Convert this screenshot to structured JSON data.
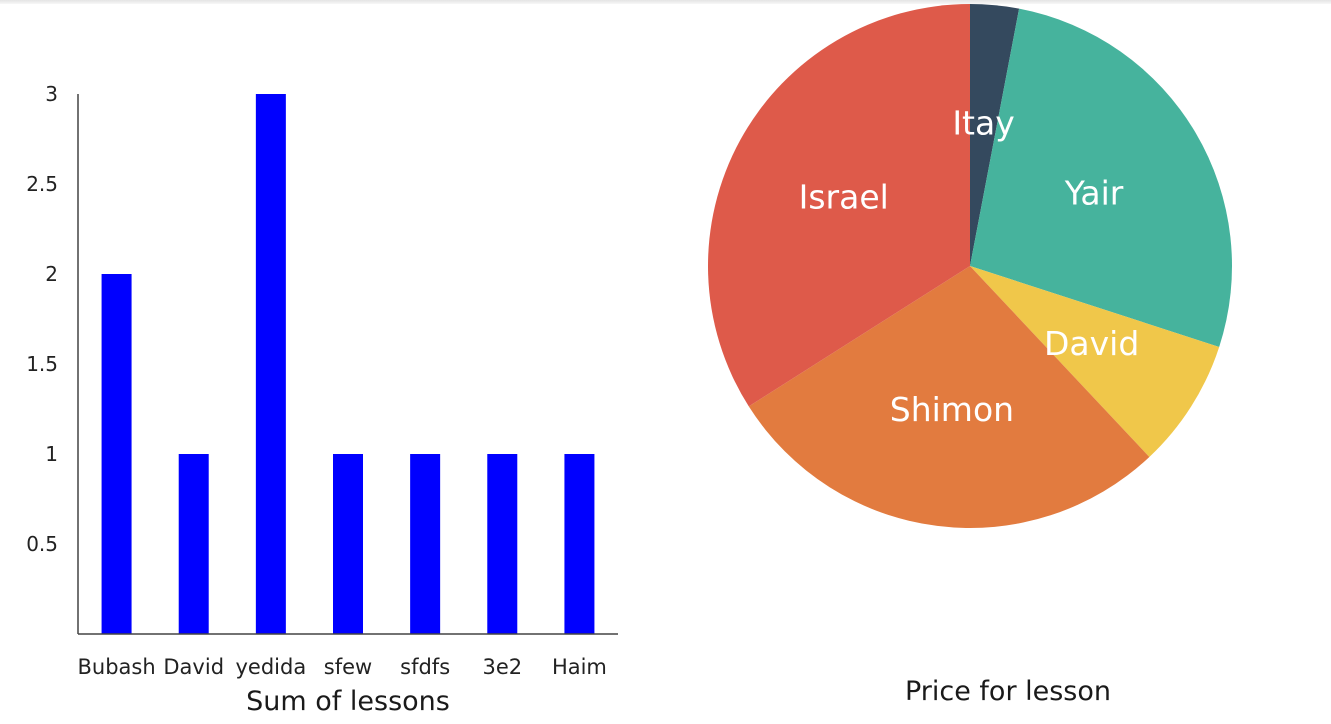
{
  "charts": {
    "bar": {
      "type": "bar",
      "title": "Sum of lessons",
      "categories": [
        "Bubash",
        "David",
        "yedida",
        "sfew",
        "sfdfs",
        "3e2",
        "Haim"
      ],
      "values": [
        2,
        1,
        3,
        1,
        1,
        1,
        1
      ],
      "yticks": [
        "0.5",
        "1",
        "1.5",
        "2",
        "2.5",
        "3"
      ],
      "ylim": [
        0,
        3
      ],
      "bar_color": "#0000ff"
    },
    "pie": {
      "type": "pie",
      "title": "Price for lesson",
      "labels": [
        "Itay",
        "Yair",
        "David",
        "Shimon",
        "Israel"
      ],
      "values": [
        3,
        27,
        8,
        28,
        34
      ],
      "colors": [
        "#34495e",
        "#46b39d",
        "#f0c74a",
        "#e27b3f",
        "#de5a4a"
      ]
    }
  },
  "chart_data": [
    {
      "type": "bar",
      "title": "Sum of lessons",
      "categories": [
        "Bubash",
        "David",
        "yedida",
        "sfew",
        "sfdfs",
        "3e2",
        "Haim"
      ],
      "values": [
        2,
        1,
        3,
        1,
        1,
        1,
        1
      ],
      "ylim": [
        0,
        3
      ],
      "xlabel": "",
      "ylabel": "",
      "grid": false
    },
    {
      "type": "pie",
      "title": "Price for lesson",
      "labels": [
        "Itay",
        "Yair",
        "David",
        "Shimon",
        "Israel"
      ],
      "values": [
        3,
        27,
        8,
        28,
        34
      ]
    }
  ]
}
